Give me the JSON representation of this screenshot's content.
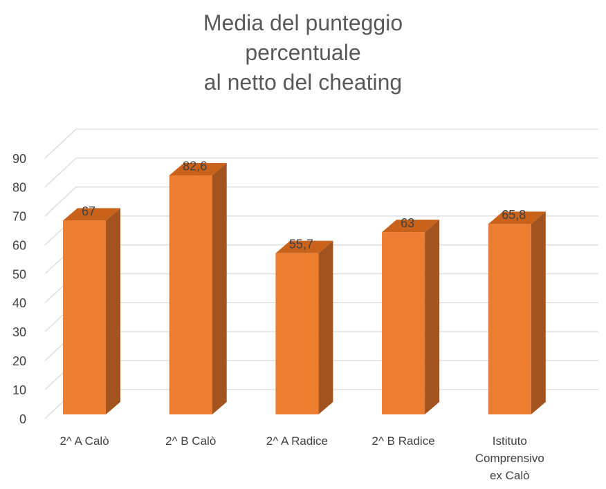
{
  "chart_data": {
    "type": "bar3d",
    "title": "Media del punteggio\npercentuale\nal netto del cheating",
    "categories": [
      "2^ A Calò",
      "2^ B Calò",
      "2^ A Radice",
      "2^ B Radice",
      "Istituto Comprensivo ex Calò"
    ],
    "values": [
      67,
      82.6,
      55.7,
      63,
      65.8
    ],
    "value_labels": [
      "67",
      "82,6",
      "55,7",
      "63",
      "65,8"
    ],
    "color": "#ed7d31",
    "ylim": [
      0,
      90
    ],
    "yticks": [
      0,
      10,
      20,
      30,
      40,
      50,
      60,
      70,
      80,
      90
    ],
    "grid": true
  }
}
